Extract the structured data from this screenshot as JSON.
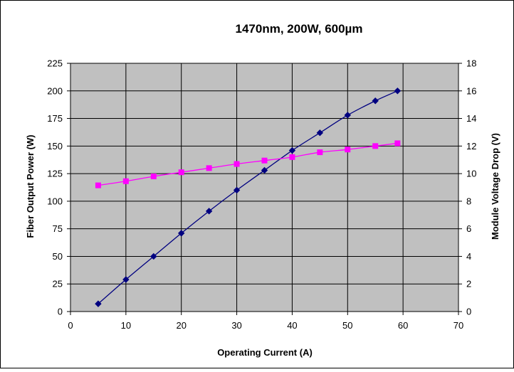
{
  "chart_data": {
    "type": "line",
    "title": "1470nm, 200W, 600µm",
    "xlabel": "Operating Current (A)",
    "ylabel": "Fiber Output Power (W)",
    "y2label": "Module Voltage Drop (V)",
    "xlim": [
      0,
      70
    ],
    "ylim": [
      0,
      225
    ],
    "y2lim": [
      0,
      18
    ],
    "x_ticks": [
      0,
      10,
      20,
      30,
      40,
      50,
      60,
      70
    ],
    "y_ticks": [
      0,
      25,
      50,
      75,
      100,
      125,
      150,
      175,
      200,
      225
    ],
    "y2_ticks": [
      0,
      2,
      4,
      6,
      8,
      10,
      12,
      14,
      16,
      18
    ],
    "grid": true,
    "legend": "none",
    "series": [
      {
        "axis": "left",
        "color": "#000080",
        "marker": "diamond",
        "x": [
          5,
          10,
          15,
          20,
          25,
          30,
          35,
          40,
          45,
          50,
          55,
          59
        ],
        "y": [
          7,
          29,
          50,
          71,
          91,
          110,
          128,
          146,
          162,
          178,
          191,
          200
        ]
      },
      {
        "axis": "right",
        "color": "#ff00ff",
        "marker": "square",
        "x": [
          5,
          10,
          15,
          20,
          25,
          30,
          35,
          40,
          45,
          50,
          55,
          59
        ],
        "y": [
          9.15,
          9.45,
          9.8,
          10.1,
          10.4,
          10.7,
          10.95,
          11.2,
          11.55,
          11.75,
          12.0,
          12.2
        ]
      }
    ],
    "colors": {
      "plot_background": "#c0c0c0",
      "grid": "#000000"
    }
  }
}
